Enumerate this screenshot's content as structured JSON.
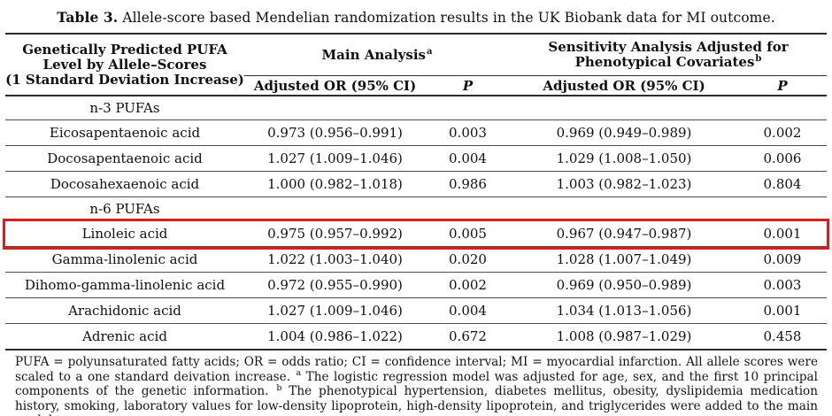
{
  "title": {
    "label": "Table 3.",
    "text": " Allele-score based Mendelian randomization results in the UK Biobank data for MI outcome."
  },
  "table": {
    "stub_header": {
      "line1": "Genetically Predicted PUFA",
      "line2": "Level by Allele–Scores",
      "line3": "(1 Standard Deviation Increase)"
    },
    "group_main": {
      "label": "Main Analysis",
      "sup": "a"
    },
    "group_sensitivity": {
      "line1": "Sensitivity Analysis Adjusted for",
      "line2": "Phenotypical Covariates",
      "sup": "b"
    },
    "subheaders": {
      "or_main": "Adjusted OR (95% CI)",
      "p_main": "P",
      "or_sens": "Adjusted OR (95% CI)",
      "p_sens": "P"
    },
    "highlight_color": "#de1e1e",
    "rows": [
      {
        "label": "n-3 PUFAs",
        "type": "section"
      },
      {
        "label": "Eicosapentaenoic acid",
        "or_main": "0.973 (0.956–0.991)",
        "p_main": "0.003",
        "or_sens": "0.969 (0.949–0.989)",
        "p_sens": "0.002"
      },
      {
        "label": "Docosapentaenoic acid",
        "or_main": "1.027 (1.009–1.046)",
        "p_main": "0.004",
        "or_sens": "1.029 (1.008–1.050)",
        "p_sens": "0.006"
      },
      {
        "label": "Docosahexaenoic acid",
        "or_main": "1.000 (0.982–1.018)",
        "p_main": "0.986",
        "or_sens": "1.003 (0.982–1.023)",
        "p_sens": "0.804"
      },
      {
        "label": "n-6 PUFAs",
        "type": "section"
      },
      {
        "label": "Linoleic acid",
        "or_main": "0.975 (0.957–0.992)",
        "p_main": "0.005",
        "or_sens": "0.967 (0.947–0.987)",
        "p_sens": "0.001",
        "highlighted": true
      },
      {
        "label": "Gamma-linolenic acid",
        "or_main": "1.022 (1.003–1.040)",
        "p_main": "0.020",
        "or_sens": "1.028 (1.007–1.049)",
        "p_sens": "0.009"
      },
      {
        "label": "Dihomo-gamma-linolenic acid",
        "or_main": "0.972 (0.955–0.990)",
        "p_main": "0.002",
        "or_sens": "0.969 (0.950–0.989)",
        "p_sens": "0.003"
      },
      {
        "label": "Arachidonic acid",
        "or_main": "1.027 (1.009–1.046)",
        "p_main": "0.004",
        "or_sens": "1.034 (1.013–1.056)",
        "p_sens": "0.001"
      },
      {
        "label": "Adrenic acid",
        "or_main": "1.004 (0.986–1.022)",
        "p_main": "0.672",
        "or_sens": "1.008 (0.987–1.029)",
        "p_sens": "0.458"
      }
    ]
  },
  "footnote": {
    "seg1": "PUFA = polyunsaturated fatty acids; OR = odds ratio; CI = confidence interval; MI = myocardial infarction. All allele scores were scaled to a one standard deivation increase. ",
    "sup_a": "a",
    "seg2": " The logistic regression model was adjusted for age, sex, and the first 10 principal components of the genetic information. ",
    "sup_b": "b",
    "seg3": " The phenotypical hypertension, diabetes mellitus, obesity, dyslipidemia medication history, smoking, laboratory values for low-density lipoprotein, high-density lipoprotein, and triglycerides were added to the main model."
  }
}
